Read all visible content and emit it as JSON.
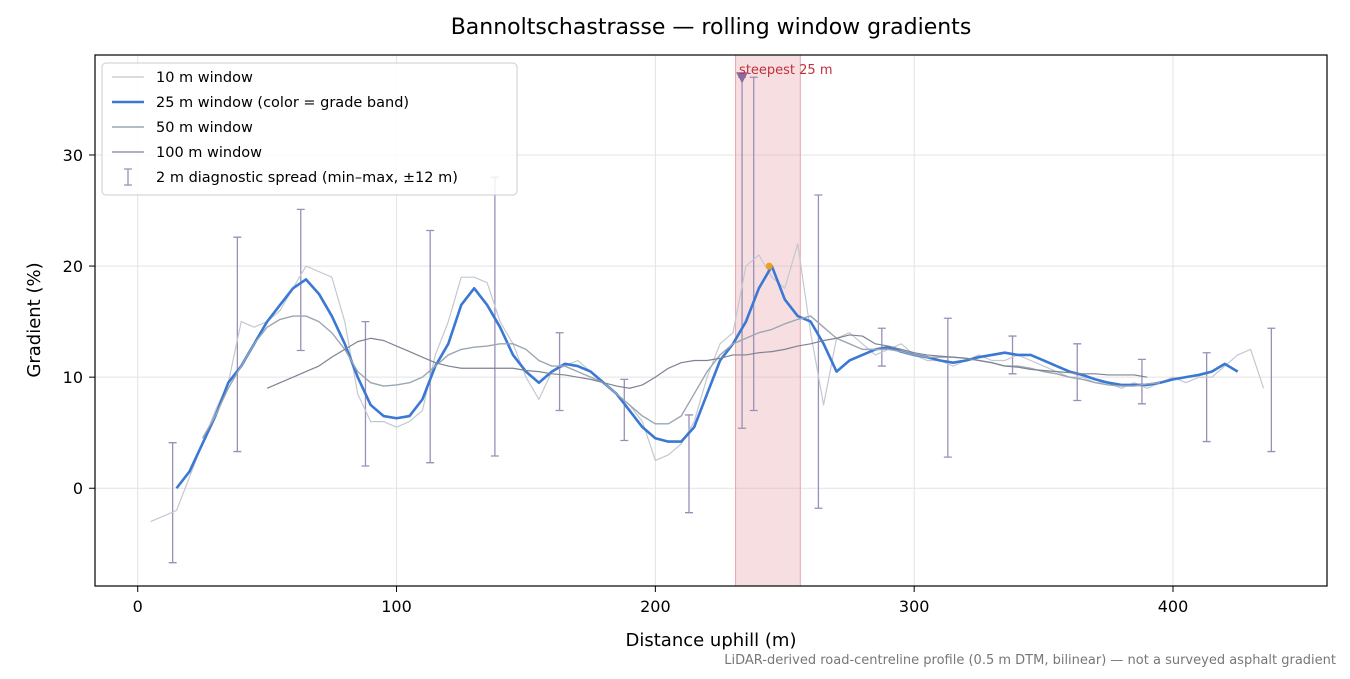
{
  "chart_data": {
    "type": "line",
    "title": "Bannoltschastrasse — rolling window gradients",
    "xlabel": "Distance uphill (m)",
    "ylabel": "Gradient (%)",
    "footnote": "LiDAR-derived road-centreline profile (0.5 m DTM, bilinear) — not a surveyed asphalt gradient",
    "x": [
      5,
      10,
      15,
      20,
      25,
      30,
      35,
      40,
      45,
      50,
      55,
      60,
      65,
      70,
      75,
      80,
      85,
      90,
      95,
      100,
      105,
      110,
      115,
      120,
      125,
      130,
      135,
      140,
      145,
      150,
      155,
      160,
      165,
      170,
      175,
      180,
      185,
      190,
      195,
      200,
      205,
      210,
      215,
      220,
      225,
      230,
      235,
      240,
      245,
      250,
      255,
      260,
      265,
      270,
      275,
      280,
      285,
      290,
      295,
      300,
      305,
      310,
      315,
      320,
      325,
      330,
      335,
      340,
      345,
      350,
      355,
      360,
      365,
      370,
      375,
      380,
      385,
      390,
      395,
      400,
      405,
      410,
      415,
      420,
      425,
      430,
      435
    ],
    "series": [
      {
        "name": "10 m window",
        "color": "#c3c8d0",
        "width": 1.2,
        "values": [
          -3,
          -2.5,
          -2,
          1,
          4,
          7,
          9.5,
          15,
          14.5,
          15,
          16,
          18,
          20,
          19.5,
          19,
          15,
          8.5,
          6,
          6,
          5.5,
          6,
          7,
          12,
          15,
          19,
          19,
          18.5,
          15,
          13,
          10,
          8,
          10.5,
          11,
          11.5,
          10.5,
          9.5,
          8.5,
          7.5,
          6,
          2.5,
          3,
          4,
          6,
          10,
          13,
          14,
          20,
          21,
          19,
          18,
          22,
          14,
          7.5,
          13.5,
          14,
          13,
          12,
          12.5,
          13,
          12,
          11.5,
          11.5,
          11,
          11.5,
          12,
          11.5,
          11.5,
          12,
          11.5,
          11,
          10.5,
          10,
          10,
          9.5,
          9.5,
          9,
          9.5,
          9,
          9.5,
          10,
          9.5,
          10,
          10,
          11,
          12,
          12.5,
          9
        ]
      },
      {
        "name": "25 m window (color = grade band)",
        "color": "#3a78d4",
        "width": 2.6,
        "values": [
          null,
          null,
          0,
          1.5,
          4,
          6.5,
          9.5,
          11,
          13,
          15,
          16.5,
          18,
          18.8,
          17.5,
          15.5,
          13,
          10,
          7.5,
          6.5,
          6.3,
          6.5,
          8,
          11,
          13,
          16.5,
          18,
          16.5,
          14.5,
          12,
          10.5,
          9.5,
          10.5,
          11.2,
          11,
          10.5,
          9.5,
          8.5,
          7,
          5.5,
          4.5,
          4.2,
          4.2,
          5.5,
          8.5,
          11.5,
          13,
          15,
          18,
          20,
          17,
          15.5,
          15,
          13,
          10.5,
          11.5,
          12,
          12.5,
          12.7,
          12.3,
          12,
          11.8,
          11.5,
          11.3,
          11.5,
          11.8,
          12,
          12.2,
          12,
          12,
          11.5,
          11,
          10.5,
          10.2,
          9.8,
          9.5,
          9.3,
          9.3,
          9.3,
          9.5,
          9.8,
          10,
          10.2,
          10.5,
          11.2,
          10.5,
          null,
          null
        ]
      },
      {
        "name": "50 m window",
        "color": "#9ba6b3",
        "width": 1.4,
        "values": [
          null,
          null,
          null,
          null,
          4.5,
          6.5,
          9,
          11,
          13,
          14.5,
          15.2,
          15.5,
          15.5,
          15,
          14,
          12.5,
          10.5,
          9.5,
          9.2,
          9.3,
          9.5,
          10,
          11,
          12,
          12.5,
          12.7,
          12.8,
          13,
          13,
          12.5,
          11.5,
          11,
          11,
          10.5,
          10,
          9.5,
          8.5,
          7.5,
          6.5,
          5.8,
          5.8,
          6.5,
          8.5,
          10.5,
          12,
          13,
          13.5,
          14,
          14.3,
          14.8,
          15.2,
          15.5,
          14.5,
          13.5,
          13,
          12.5,
          12.5,
          12.5,
          12.3,
          12,
          11.8,
          11.8,
          11.8,
          11.7,
          11.5,
          11.3,
          11,
          11,
          10.8,
          10.5,
          10.3,
          10,
          9.8,
          9.5,
          9.3,
          9.2,
          9.2,
          9.4,
          9.5,
          null,
          null,
          null,
          null,
          null,
          null,
          null,
          null
        ]
      },
      {
        "name": "100 m window",
        "color": "#7c8492",
        "width": 1.2,
        "values": [
          null,
          null,
          null,
          null,
          null,
          null,
          null,
          null,
          null,
          9,
          9.5,
          10,
          10.5,
          11,
          11.8,
          12.5,
          13.2,
          13.5,
          13.3,
          12.8,
          12.3,
          11.8,
          11.3,
          11,
          10.8,
          10.8,
          10.8,
          10.8,
          10.8,
          10.6,
          10.5,
          10.3,
          10.2,
          10,
          9.8,
          9.5,
          9.2,
          9,
          9.3,
          10,
          10.8,
          11.3,
          11.5,
          11.5,
          11.7,
          12,
          12,
          12.2,
          12.3,
          12.5,
          12.8,
          13,
          13.3,
          13.5,
          13.8,
          13.7,
          13,
          12.8,
          12.5,
          12.2,
          12,
          11.9,
          11.8,
          11.7,
          11.5,
          11.3,
          11,
          10.9,
          10.7,
          10.6,
          10.5,
          10.4,
          10.3,
          10.3,
          10.2,
          10.2,
          10.2,
          10,
          null,
          null,
          null,
          null,
          null,
          null,
          null,
          null,
          null
        ]
      }
    ],
    "error_bars": {
      "name": "2 m diagnostic spread (min–max, ±12 m)",
      "color": "#9b8fb8",
      "x": [
        13.5,
        38.5,
        63,
        88,
        113,
        138,
        163,
        188,
        213,
        233.5,
        238,
        263,
        287.5,
        313,
        338,
        363,
        388,
        413,
        438
      ],
      "low": [
        -6.7,
        3.3,
        12.4,
        2,
        2.3,
        2.9,
        7,
        4.3,
        -2.2,
        5.4,
        7,
        -1.8,
        11,
        2.8,
        10.3,
        7.9,
        7.6,
        4.2,
        3.3
      ],
      "high": [
        4.1,
        22.6,
        25.1,
        15,
        23.2,
        28,
        14,
        9.8,
        6.6,
        37,
        37,
        26.4,
        14.4,
        15.3,
        13.7,
        13,
        11.6,
        12.2,
        14.4
      ]
    },
    "highlight": {
      "label": "steepest 25 m",
      "xrange": [
        231,
        256
      ],
      "marker": [
        233.5,
        37
      ],
      "color": "#e8a4aa"
    },
    "peak": {
      "x": 244,
      "y": 20,
      "color": "#f0a020"
    },
    "xlim": [
      -16.5,
      459.5
    ],
    "ylim": [
      -8.8,
      39
    ],
    "xticks": [
      0,
      100,
      200,
      300,
      400
    ],
    "yticks": [
      0,
      10,
      20,
      30
    ],
    "grid": true,
    "legend": "upper left"
  }
}
